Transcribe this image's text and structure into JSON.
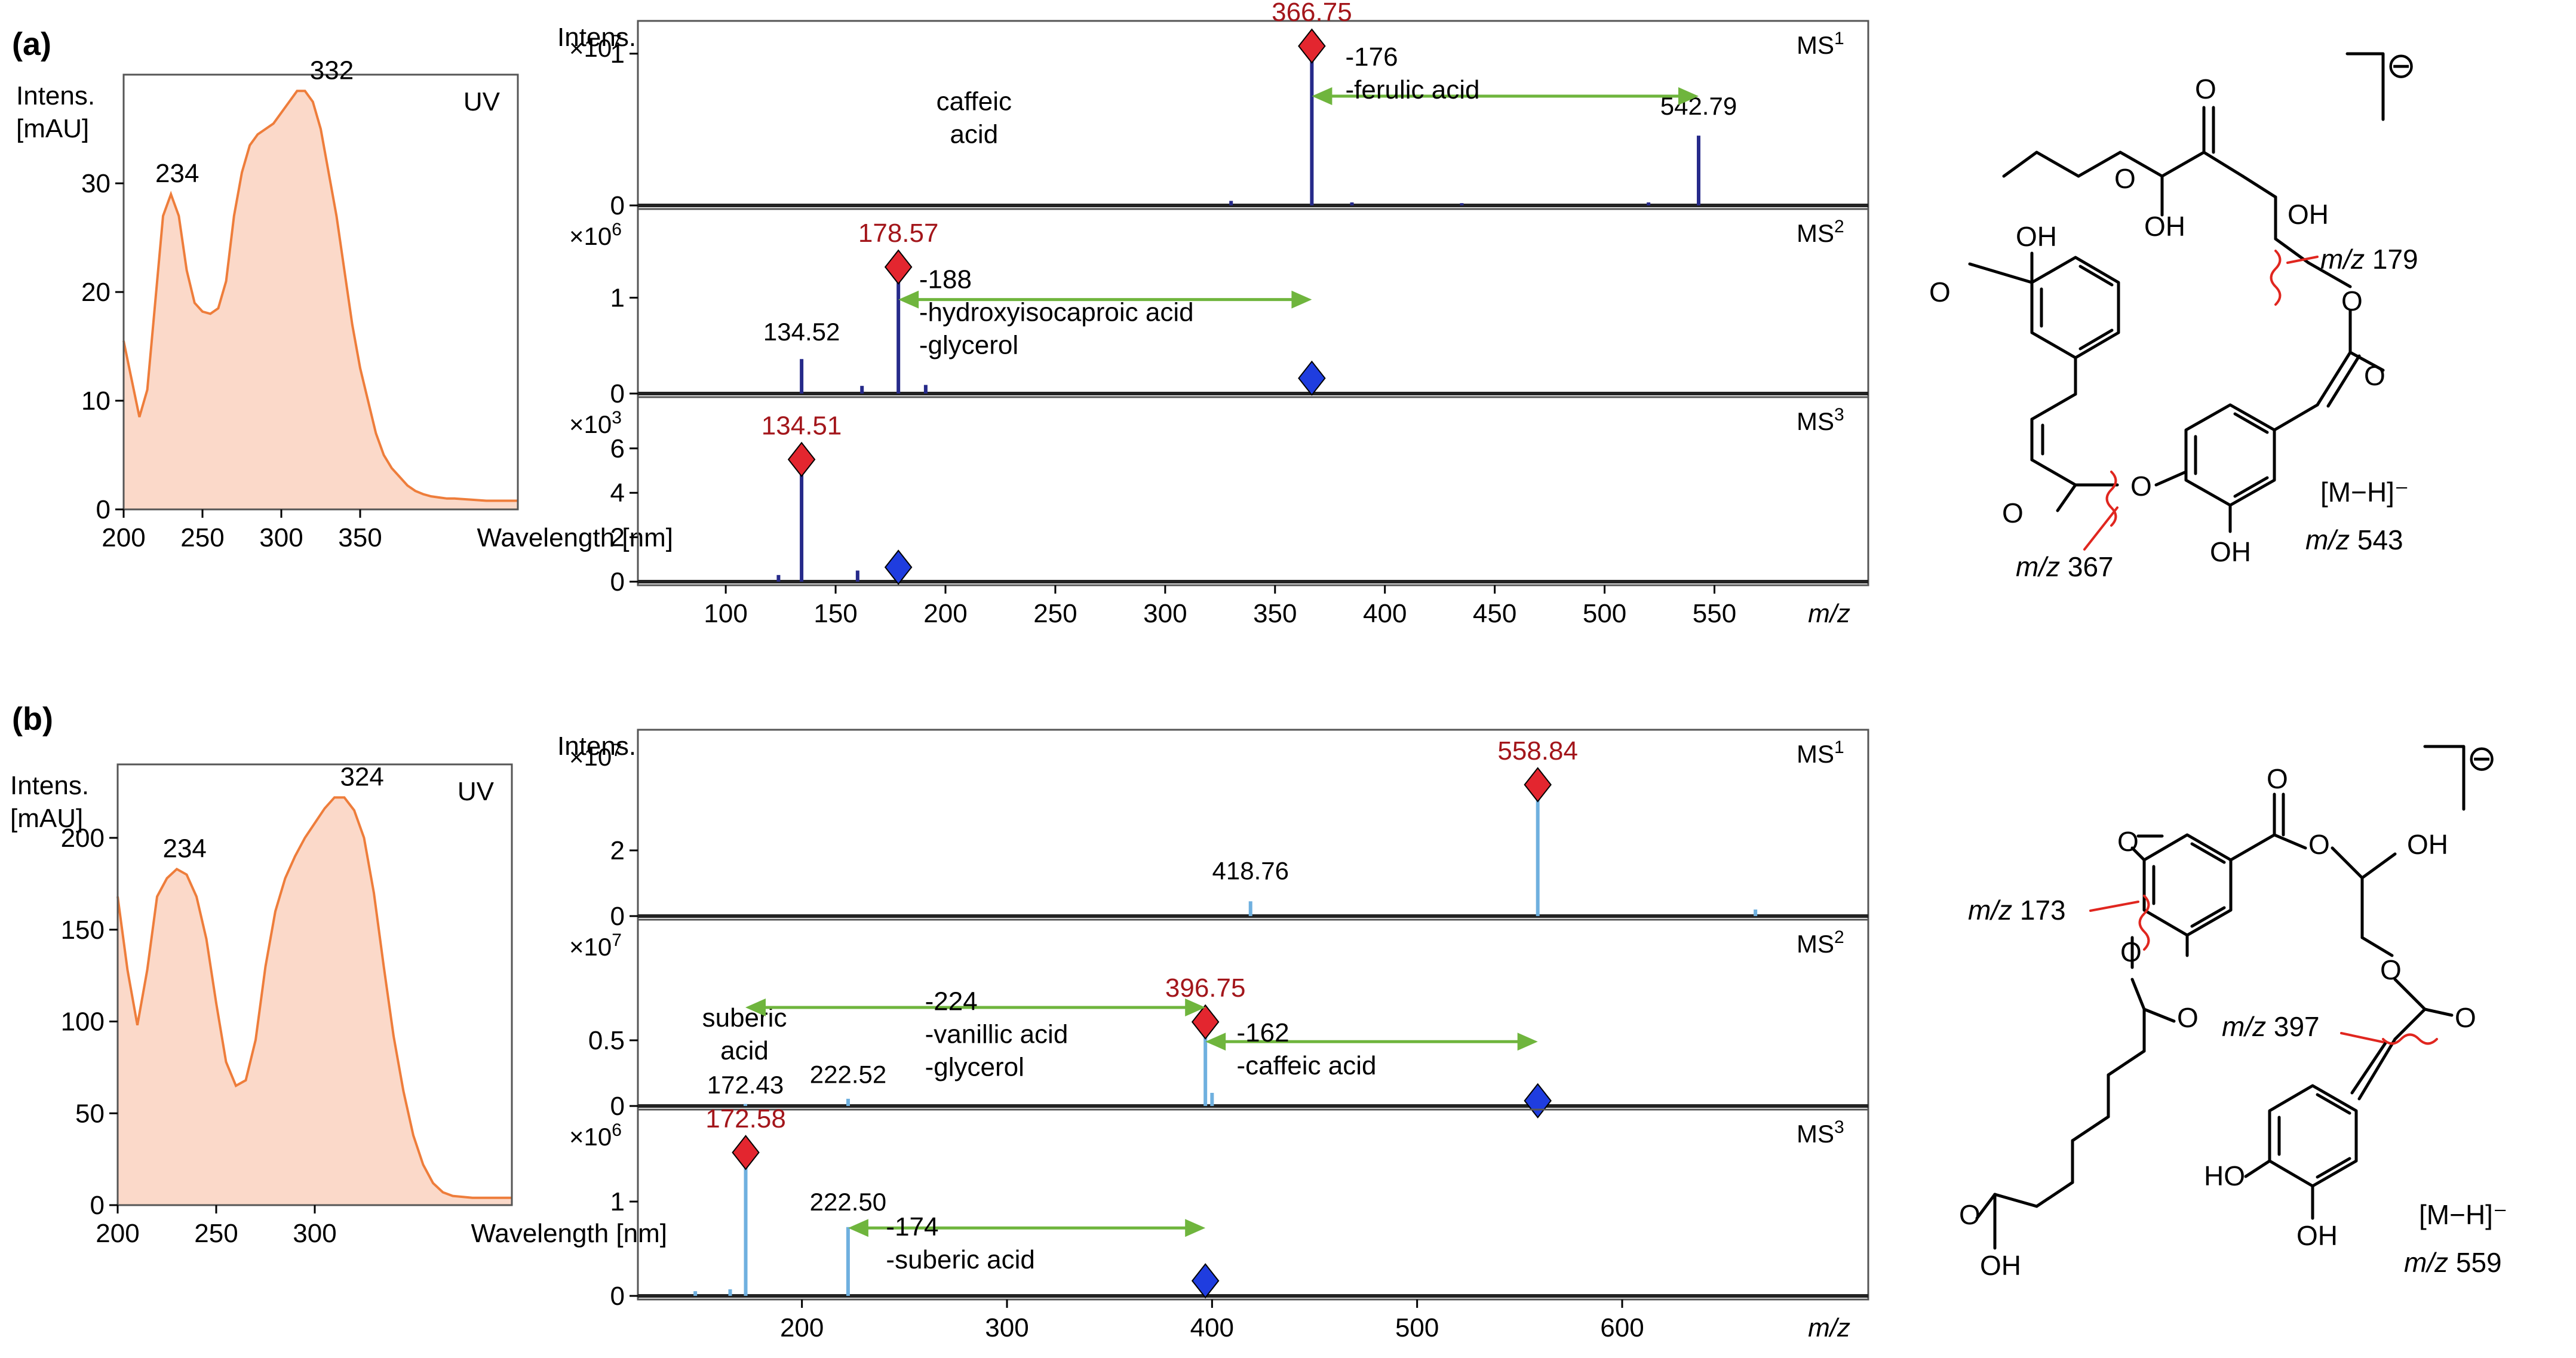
{
  "figure": {
    "panels": [
      {
        "label": "(a)",
        "uv": {
          "title": "UV",
          "ylabel_lines": [
            "Intens.",
            "[mAU]"
          ],
          "xlabel": "Wavelength [nm]",
          "xticks": [
            200,
            250,
            300,
            350
          ],
          "yticks": [
            0,
            10,
            20,
            30
          ],
          "xlim": [
            200,
            450
          ],
          "ylim": [
            0,
            40
          ],
          "fill_color": "#fbd9c9",
          "line_color": "#ee7d3b",
          "curve_x": [
            200,
            205,
            210,
            215,
            220,
            225,
            230,
            235,
            240,
            245,
            250,
            255,
            260,
            265,
            270,
            275,
            280,
            285,
            290,
            295,
            300,
            305,
            310,
            315,
            320,
            325,
            330,
            335,
            340,
            345,
            350,
            355,
            360,
            365,
            370,
            375,
            380,
            385,
            390,
            395,
            400,
            405,
            410,
            420,
            430,
            440,
            450
          ],
          "curve_y": [
            15.5,
            12,
            8.5,
            11,
            19,
            27,
            29,
            27,
            22,
            19,
            18.2,
            18,
            18.5,
            21,
            27,
            31,
            33.5,
            34.5,
            35,
            35.5,
            36.5,
            37.5,
            38.5,
            38.5,
            37.5,
            35,
            31,
            27,
            22,
            17,
            13,
            10,
            7,
            5,
            3.8,
            3,
            2.2,
            1.7,
            1.4,
            1.2,
            1.1,
            1,
            1,
            0.9,
            0.8,
            0.8,
            0.8
          ],
          "peak_labels": [
            {
              "x": 234,
              "y": 29,
              "text": "234"
            },
            {
              "x": 332,
              "y": 38.5,
              "text": "332"
            }
          ]
        },
        "ms": {
          "intens_label": "Intens.",
          "xlabel": "m/z",
          "xticks": [
            100,
            150,
            200,
            250,
            300,
            350,
            400,
            450,
            500,
            550
          ],
          "xlim": [
            60,
            620
          ],
          "peak_color": "#262a8a",
          "parent_marker_color": "#1f3ddf",
          "selected_marker_color": "#e3262f",
          "subplots": [
            {
              "title": "MS",
              "order": "1",
              "scale_base": "×10",
              "scale_exp": "7",
              "yticks": [
                0,
                1
              ],
              "ylim": [
                0,
                1.2
              ],
              "peaks": [
                {
                  "mz": 366.75,
                  "intensity": 0.97
                },
                {
                  "mz": 542.79,
                  "intensity": 0.46
                },
                {
                  "mz": 330,
                  "intensity": 0.03
                },
                {
                  "mz": 385,
                  "intensity": 0.02
                },
                {
                  "mz": 435,
                  "intensity": 0.015
                },
                {
                  "mz": 520,
                  "intensity": 0.02
                }
              ],
              "selected": {
                "mz": 366.75,
                "value": 1.05,
                "label": "366.75"
              },
              "parent": null,
              "peak_labels": [
                {
                  "mz": 542.79,
                  "y": 0.55,
                  "text": "542.79"
                }
              ],
              "texts": [
                {
                  "mz": 213,
                  "y": 0.45,
                  "lines": [
                    "caffeic",
                    "acid"
                  ]
                }
              ],
              "arrow": {
                "from": 366.75,
                "to": 542.79,
                "y": 0.72,
                "lines": [
                  "-176",
                  "-ferulic acid"
                ],
                "text_mz": 382,
                "text_y": 0.92
              }
            },
            {
              "title": "MS",
              "order": "2",
              "scale_base": "×10",
              "scale_exp": "6",
              "yticks": [
                0,
                1
              ],
              "ylim": [
                0,
                1.9
              ],
              "peaks": [
                {
                  "mz": 134.52,
                  "intensity": 0.36
                },
                {
                  "mz": 178.57,
                  "intensity": 1.17
                },
                {
                  "mz": 162,
                  "intensity": 0.08
                },
                {
                  "mz": 191,
                  "intensity": 0.09
                }
              ],
              "selected": {
                "mz": 178.57,
                "value": 1.32,
                "label": "178.57"
              },
              "parent": {
                "mz": 366.75,
                "value": 0.16
              },
              "peak_labels": [
                {
                  "mz": 134.52,
                  "y": 0.48,
                  "text": "134.52"
                }
              ],
              "texts": [],
              "arrow": {
                "from": 178.57,
                "to": 366.75,
                "y": 0.98,
                "lines": [
                  "-188",
                  "-hydroxyisocaproic acid",
                  "-glycerol"
                ],
                "text_mz": 188,
                "text_y": 1.1
              }
            },
            {
              "title": "MS",
              "order": "3",
              "scale_base": "×10",
              "scale_exp": "3",
              "yticks": [
                0,
                2,
                4,
                6
              ],
              "ylim": [
                0,
                8.2
              ],
              "peaks": [
                {
                  "mz": 134.51,
                  "intensity": 5.1
                },
                {
                  "mz": 160,
                  "intensity": 0.5
                },
                {
                  "mz": 124,
                  "intensity": 0.3
                }
              ],
              "selected": {
                "mz": 134.51,
                "value": 5.5,
                "label": "134.51"
              },
              "parent": {
                "mz": 178.57,
                "value": 0.65
              },
              "peak_labels": [],
              "texts": [],
              "arrow": null
            }
          ]
        },
        "structure": {
          "charge": "⊖",
          "frag_labels": [
            {
              "italic": "m/z",
              "rest": " 179"
            },
            {
              "italic": "m/z",
              "rest": " 367"
            }
          ],
          "ion_label": "[M−H]⁻",
          "ion_mz_italic": "m/z",
          "ion_mz_value": " 543",
          "atoms": [
            "O",
            "OH",
            "OH",
            "OH",
            "O",
            "O",
            "O",
            "O",
            "O",
            "O",
            "OH"
          ]
        }
      },
      {
        "label": "(b)",
        "uv": {
          "title": "UV",
          "ylabel_lines": [
            "Intens.",
            "[mAU]"
          ],
          "xlabel": "Wavelength [nm]",
          "xticks": [
            200,
            250,
            300
          ],
          "yticks": [
            0,
            50,
            100,
            150,
            200
          ],
          "xlim": [
            200,
            400
          ],
          "ylim": [
            0,
            240
          ],
          "fill_color": "#fbd9c9",
          "line_color": "#ee7d3b",
          "curve_x": [
            200,
            205,
            210,
            215,
            220,
            225,
            230,
            235,
            240,
            245,
            250,
            255,
            260,
            265,
            270,
            275,
            280,
            285,
            290,
            295,
            300,
            305,
            310,
            315,
            320,
            325,
            330,
            335,
            340,
            345,
            350,
            355,
            360,
            365,
            370,
            380,
            390,
            400
          ],
          "curve_y": [
            168,
            128,
            98,
            128,
            168,
            178,
            183,
            180,
            168,
            145,
            110,
            78,
            65,
            68,
            90,
            130,
            160,
            178,
            190,
            200,
            208,
            216,
            222,
            222,
            215,
            200,
            170,
            130,
            92,
            62,
            38,
            22,
            12,
            7,
            5,
            4,
            4,
            4
          ],
          "peak_labels": [
            {
              "x": 234,
              "y": 183,
              "text": "234"
            },
            {
              "x": 324,
              "y": 222,
              "text": "324"
            }
          ]
        },
        "ms": {
          "intens_label": "Intens.",
          "xlabel": "m/z",
          "xticks": [
            200,
            300,
            400,
            500,
            600
          ],
          "xlim": [
            120,
            720
          ],
          "peak_color": "#6fb0df",
          "parent_marker_color": "#1f3ddf",
          "selected_marker_color": "#e3262f",
          "subplots": [
            {
              "title": "MS",
              "order": "1",
              "scale_base": "×10",
              "scale_exp": "7",
              "yticks": [
                0,
                2
              ],
              "ylim": [
                0,
                5.6
              ],
              "peaks": [
                {
                  "mz": 418.76,
                  "intensity": 0.45
                },
                {
                  "mz": 558.84,
                  "intensity": 3.6
                },
                {
                  "mz": 665,
                  "intensity": 0.2
                }
              ],
              "selected": {
                "mz": 558.84,
                "value": 4.0,
                "label": "558.84"
              },
              "parent": null,
              "peak_labels": [
                {
                  "mz": 418.76,
                  "y": 0.9,
                  "text": "418.76"
                }
              ],
              "texts": [],
              "arrow": null
            },
            {
              "title": "MS",
              "order": "2",
              "scale_base": "×10",
              "scale_exp": "7",
              "yticks": [
                0,
                0.5
              ],
              "ylim": [
                0,
                1.4
              ],
              "peaks": [
                {
                  "mz": 396.75,
                  "intensity": 0.58
                },
                {
                  "mz": 222.52,
                  "intensity": 0.055
                },
                {
                  "mz": 172.43,
                  "intensity": 0.015
                },
                {
                  "mz": 400,
                  "intensity": 0.1
                }
              ],
              "selected": {
                "mz": 396.75,
                "value": 0.64,
                "label": "396.75"
              },
              "parent": {
                "mz": 558.84,
                "value": 0.04
              },
              "peak_labels": [
                {
                  "mz": 172.43,
                  "y": 0.04,
                  "text": "172.43"
                },
                {
                  "mz": 222.52,
                  "y": 0.12,
                  "text": "222.52"
                }
              ],
              "texts": [
                {
                  "mz": 172,
                  "y": 0.4,
                  "lines": [
                    "suberic",
                    "acid"
                  ]
                }
              ],
              "arrow": null,
              "arrows": [
                {
                  "from": 396.75,
                  "to": 172.43,
                  "y": 0.75,
                  "lines": [
                    "-224",
                    "-vanillic acid",
                    "-glycerol"
                  ],
                  "text_mz": 260,
                  "text_y": 0.73
                },
                {
                  "from": 396.75,
                  "to": 558.84,
                  "y": 0.49,
                  "lines": [
                    "-162",
                    "-caffeic acid"
                  ],
                  "text_mz": 412,
                  "text_y": 0.49
                }
              ]
            },
            {
              "title": "MS",
              "order": "3",
              "scale_base": "×10",
              "scale_exp": "6",
              "yticks": [
                0,
                1
              ],
              "ylim": [
                0,
                1.95
              ],
              "peaks": [
                {
                  "mz": 172.58,
                  "intensity": 1.4
                },
                {
                  "mz": 222.5,
                  "intensity": 0.73
                },
                {
                  "mz": 148,
                  "intensity": 0.05
                },
                {
                  "mz": 165,
                  "intensity": 0.07
                }
              ],
              "selected": {
                "mz": 172.58,
                "value": 1.52,
                "label": "172.58"
              },
              "parent": {
                "mz": 396.75,
                "value": 0.16
              },
              "peak_labels": [
                {
                  "mz": 222.5,
                  "y": 0.83,
                  "text": "222.50"
                }
              ],
              "texts": [],
              "arrow": {
                "from": 222.5,
                "to": 396.75,
                "y": 0.72,
                "lines": [
                  "-174",
                  "-suberic acid"
                ],
                "text_mz": 241,
                "text_y": 0.64
              }
            }
          ]
        },
        "structure": {
          "charge": "⊖",
          "frag_labels": [
            {
              "italic": "m/z",
              "rest": " 173"
            },
            {
              "italic": "m/z",
              "rest": " 397"
            }
          ],
          "ion_label": "[M−H]⁻",
          "ion_mz_italic": "m/z",
          "ion_mz_value": " 559",
          "atoms": [
            "O",
            "O",
            "O",
            "OH",
            "O",
            "O",
            "O",
            "O",
            "O",
            "OH",
            "HO",
            "OH"
          ]
        }
      }
    ]
  }
}
